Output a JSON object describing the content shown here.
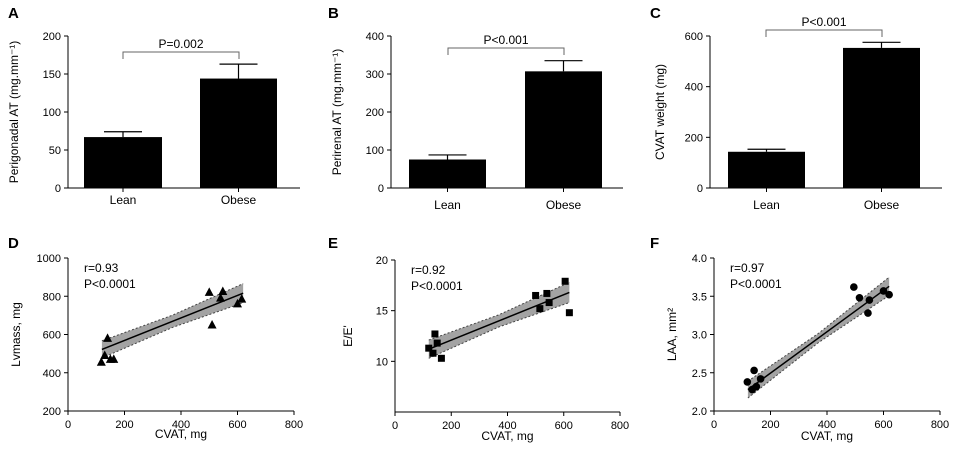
{
  "chart_data": [
    {
      "type": "bar",
      "panel": "A",
      "categories": [
        "Lean",
        "Obese"
      ],
      "values": [
        67,
        144
      ],
      "errors": [
        7,
        19
      ],
      "ylabel": "Perigonadal AT (mg.mm⁻¹)",
      "xlabel": "",
      "ylim": [
        0,
        200
      ],
      "yticks": [
        "0",
        "50",
        "100",
        "150",
        "200"
      ],
      "annotation": "P=0.002",
      "bar_color": "#000000"
    },
    {
      "type": "bar",
      "panel": "B",
      "categories": [
        "Lean",
        "Obese"
      ],
      "values": [
        75,
        307
      ],
      "errors": [
        12,
        28
      ],
      "ylabel": "Perirenal AT (mg.mm⁻¹)",
      "xlabel": "",
      "ylim": [
        0,
        400
      ],
      "yticks": [
        "0",
        "100",
        "200",
        "300",
        "400"
      ],
      "annotation": "P<0.001",
      "bar_color": "#000000"
    },
    {
      "type": "bar",
      "panel": "C",
      "categories": [
        "Lean",
        "Obese"
      ],
      "values": [
        143,
        553
      ],
      "errors": [
        10,
        22
      ],
      "ylabel": "CVAT weight (mg)",
      "xlabel": "",
      "ylim": [
        0,
        600
      ],
      "yticks": [
        "0",
        "200",
        "400",
        "600"
      ],
      "annotation": "P<0.001",
      "bar_color": "#000000"
    },
    {
      "type": "scatter",
      "panel": "D",
      "marker": "triangle",
      "xlabel": "CVAT, mg",
      "ylabel": "Lvmass, mg",
      "xlim": [
        0,
        800
      ],
      "ylim": [
        200,
        1000
      ],
      "xticks": [
        "0",
        "200",
        "400",
        "600",
        "800"
      ],
      "yticks": [
        "200",
        "400",
        "600",
        "800",
        "1000"
      ],
      "annotation": [
        "r=0.93",
        "P<0.0001"
      ],
      "points": [
        [
          118,
          455
        ],
        [
          130,
          490
        ],
        [
          140,
          580
        ],
        [
          150,
          470
        ],
        [
          162,
          470
        ],
        [
          500,
          820
        ],
        [
          510,
          650
        ],
        [
          540,
          790
        ],
        [
          548,
          825
        ],
        [
          600,
          760
        ],
        [
          615,
          785
        ]
      ],
      "fit": [
        [
          120,
          522
        ],
        [
          620,
          816
        ]
      ],
      "band_halfwidth": [
        45,
        32,
        50
      ]
    },
    {
      "type": "scatter",
      "panel": "E",
      "marker": "square",
      "xlabel": "CVAT, mg",
      "ylabel": "E/E'",
      "xlim": [
        0,
        800
      ],
      "ylim": [
        5,
        20
      ],
      "xticks": [
        "0",
        "200",
        "400",
        "600",
        "800"
      ],
      "yticks": [
        "10",
        "15",
        "20"
      ],
      "annotation": [
        "r=0.92",
        "P<0.0001"
      ],
      "points": [
        [
          120,
          11.3
        ],
        [
          135,
          10.8
        ],
        [
          142,
          12.7
        ],
        [
          150,
          11.8
        ],
        [
          165,
          10.3
        ],
        [
          500,
          16.5
        ],
        [
          515,
          15.2
        ],
        [
          540,
          16.7
        ],
        [
          548,
          15.8
        ],
        [
          605,
          17.9
        ],
        [
          620,
          14.8
        ]
      ],
      "fit": [
        [
          120,
          11.2
        ],
        [
          620,
          16.8
        ]
      ],
      "band_halfwidth": [
        0.9,
        0.6,
        1.0
      ]
    },
    {
      "type": "scatter",
      "panel": "F",
      "marker": "circle",
      "xlabel": "CVAT, mg",
      "ylabel": "LAA, mm²",
      "xlim": [
        0,
        800
      ],
      "ylim": [
        2.0,
        4.0
      ],
      "xticks": [
        "0",
        "200",
        "400",
        "600",
        "800"
      ],
      "yticks": [
        "2.0",
        "2.5",
        "3.0",
        "3.5",
        "4.0"
      ],
      "annotation": [
        "r=0.97",
        "P<0.0001"
      ],
      "points": [
        [
          118,
          2.38
        ],
        [
          135,
          2.28
        ],
        [
          142,
          2.53
        ],
        [
          150,
          2.32
        ],
        [
          165,
          2.42
        ],
        [
          495,
          3.62
        ],
        [
          515,
          3.48
        ],
        [
          545,
          3.28
        ],
        [
          550,
          3.45
        ],
        [
          600,
          3.57
        ],
        [
          620,
          3.52
        ]
      ],
      "fit": [
        [
          120,
          2.28
        ],
        [
          620,
          3.63
        ]
      ],
      "band_halfwidth": [
        0.11,
        0.06,
        0.12
      ]
    }
  ]
}
